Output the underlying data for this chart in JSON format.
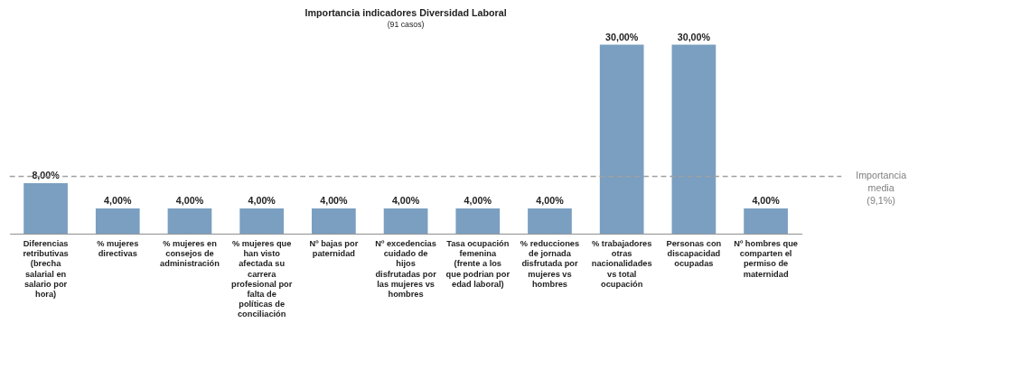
{
  "chart_data": {
    "type": "bar",
    "title": "Importancia indicadores Diversidad Laboral",
    "subtitle": "(91 casos)",
    "categories": [
      "Diferencias retributivas (brecha salarial en salario por hora)",
      "% mujeres directivas",
      "% mujeres en consejos de administración",
      "% mujeres que han visto afectada su carrera profesional por falta de políticas de conciliación",
      "Nº bajas por paternidad",
      "Nº excedencias cuidado de hijos disfrutadas por las mujeres vs hombres",
      "Tasa ocupación femenina (frente a los que podrian por edad laboral)",
      "% reducciones de jornada disfrutada por mujeres vs hombres",
      "% trabajadores otras nacionalidades vs total ocupación",
      "Personas con discapacidad ocupadas",
      "Nº hombres que comparten el permiso de maternidad"
    ],
    "values": [
      8,
      4,
      4,
      4,
      4,
      4,
      4,
      4,
      30,
      30,
      4
    ],
    "value_labels": [
      "8,00%",
      "4,00%",
      "4,00%",
      "4,00%",
      "4,00%",
      "4,00%",
      "4,00%",
      "4,00%",
      "30,00%",
      "30,00%",
      "4,00%"
    ],
    "color": "#7a9fc0",
    "ref_lines": [
      {
        "axis": "y",
        "value": 9.1,
        "label": "Importancia media (9,1%)",
        "color": "#a0a0a0",
        "line_style": "dashed"
      }
    ],
    "grid": false
  }
}
